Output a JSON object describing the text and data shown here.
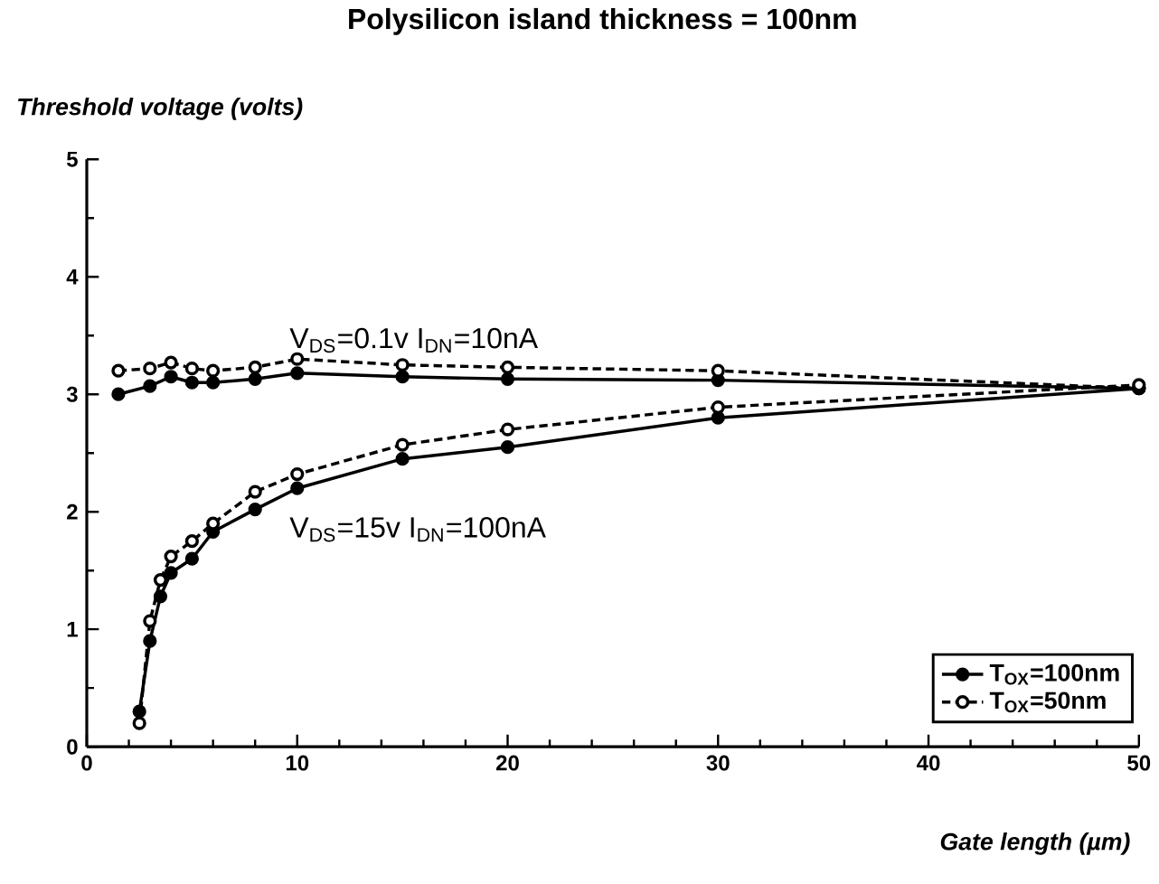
{
  "chart_data": {
    "type": "line",
    "title": "Polysilicon island thickness = 100nm",
    "xlabel": "Gate length (µm)",
    "ylabel": "Threshold voltage (volts)",
    "xlim": [
      0,
      50
    ],
    "ylim": [
      0,
      5
    ],
    "xticks": [
      0,
      {
        "value": 2,
        "label": null
      },
      {
        "value": 4,
        "label": null
      },
      {
        "value": 6,
        "label": null
      },
      {
        "value": 8,
        "label": null
      },
      10,
      {
        "value": 12,
        "label": null
      },
      {
        "value": 14,
        "label": null
      },
      {
        "value": 16,
        "label": null
      },
      {
        "value": 18,
        "label": null
      },
      20,
      {
        "value": 22,
        "label": null
      },
      {
        "value": 24,
        "label": null
      },
      {
        "value": 26,
        "label": null
      },
      {
        "value": 28,
        "label": null
      },
      30,
      {
        "value": 32,
        "label": null
      },
      {
        "value": 34,
        "label": null
      },
      {
        "value": 36,
        "label": null
      },
      {
        "value": 38,
        "label": null
      },
      40,
      {
        "value": 42,
        "label": null
      },
      {
        "value": 44,
        "label": null
      },
      {
        "value": 46,
        "label": null
      },
      {
        "value": 48,
        "label": null
      },
      50
    ],
    "yticks": [
      0,
      {
        "value": 0.5,
        "label": null
      },
      1,
      {
        "value": 1.5,
        "label": null
      },
      2,
      {
        "value": 2.5,
        "label": null
      },
      3,
      {
        "value": 3.5,
        "label": null
      },
      4,
      {
        "value": 4.5,
        "label": null
      },
      5
    ],
    "grid": false,
    "legend": "bottom right",
    "marker": "circle",
    "series": [
      {
        "name": "T$_{OX}$=100nm",
        "color": "#000000",
        "line_style": "solid",
        "x": [
          1.5,
          3,
          4,
          5,
          6,
          8,
          10,
          15,
          20,
          30,
          50
        ],
        "values": [
          3.0,
          3.07,
          3.15,
          3.1,
          3.1,
          3.13,
          3.18,
          3.15,
          3.13,
          3.12,
          3.05
        ]
      },
      {
        "name": "T$_{OX}$=50nm",
        "color": "#000000",
        "line_style": "dashed",
        "x": [
          1.5,
          3,
          4,
          5,
          6,
          8,
          10,
          15,
          20,
          30,
          50
        ],
        "values": [
          3.2,
          3.22,
          3.27,
          3.22,
          3.2,
          3.23,
          3.3,
          3.25,
          3.23,
          3.2,
          3.05
        ]
      },
      {
        "color": "#000000",
        "line_style": "solid",
        "x": [
          2.5,
          3,
          3.5,
          4,
          5,
          6,
          8,
          10,
          15,
          20,
          30,
          50
        ],
        "values": [
          0.3,
          0.9,
          1.28,
          1.48,
          1.6,
          1.83,
          2.02,
          2.2,
          2.45,
          2.55,
          2.8,
          3.05
        ]
      },
      {
        "color": "#000000",
        "line_style": "dashed",
        "x": [
          2.5,
          3,
          3.5,
          4,
          5,
          6,
          8,
          10,
          15,
          20,
          30,
          50
        ],
        "values": [
          0.2,
          1.07,
          1.42,
          1.62,
          1.75,
          1.9,
          2.17,
          2.32,
          2.57,
          2.7,
          2.89,
          3.08
        ]
      }
    ],
    "annotations": [
      "V$_{DS}$=0.1v I$_{DN}$=10nA",
      "V$_{DS}$=15v I$_{DN}$=100nA"
    ]
  }
}
